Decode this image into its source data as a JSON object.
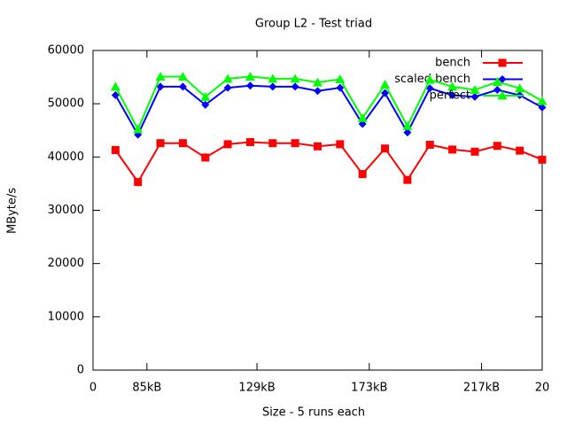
{
  "chart_data": {
    "type": "line",
    "title": "Group L2 - Test triad",
    "xlabel": "Size - 5 runs each",
    "ylabel": "MByte/s",
    "x": [
      1,
      2,
      3,
      4,
      5,
      6,
      7,
      8,
      9,
      10,
      11,
      12,
      13,
      14,
      15,
      16,
      17,
      18,
      19,
      20
    ],
    "series": [
      {
        "name": "bench",
        "color": "#ff0000",
        "marker": "square",
        "values": [
          41300,
          35300,
          42600,
          42600,
          39900,
          42400,
          42800,
          42600,
          42600,
          42000,
          42400,
          36800,
          41600,
          35700,
          42300,
          41400,
          41000,
          42100,
          41200,
          39500
        ]
      },
      {
        "name": "scaled bench",
        "color": "#0000ff",
        "marker": "diamond",
        "values": [
          51600,
          44200,
          53200,
          53200,
          49800,
          53000,
          53400,
          53200,
          53200,
          52400,
          53000,
          46200,
          52000,
          44600,
          52900,
          51600,
          51300,
          52600,
          51600,
          49300
        ]
      },
      {
        "name": "perfect",
        "color": "#00ff00",
        "marker": "triangle",
        "values": [
          53200,
          45200,
          55100,
          55100,
          51300,
          54700,
          55100,
          54700,
          54700,
          54000,
          54600,
          47300,
          53600,
          45800,
          54500,
          53200,
          52600,
          54100,
          52900,
          50500
        ]
      }
    ],
    "xlim": [
      0,
      20
    ],
    "xticks": [
      0,
      {
        "value": 2.4,
        "label": "85kB"
      },
      {
        "value": 7.3,
        "label": "129kB"
      },
      {
        "value": 12.3,
        "label": "173kB"
      },
      {
        "value": 17.3,
        "label": "217kB"
      },
      20
    ],
    "ylim": [
      0,
      60000
    ],
    "yticks": [
      0,
      10000,
      20000,
      30000,
      40000,
      50000,
      60000
    ],
    "grid": false,
    "legend": "top-right"
  }
}
